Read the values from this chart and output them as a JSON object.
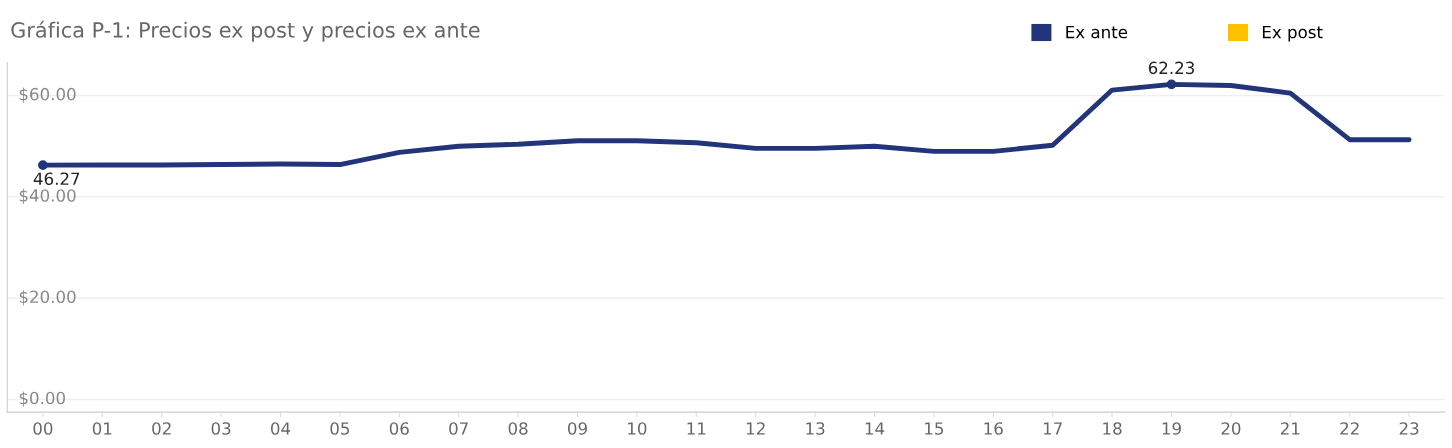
{
  "chart_data": {
    "type": "line",
    "title": "Gráfica P-1: Precios ex post y precios ex ante",
    "categories": [
      "00",
      "01",
      "02",
      "03",
      "04",
      "05",
      "06",
      "07",
      "08",
      "09",
      "10",
      "11",
      "12",
      "13",
      "14",
      "15",
      "16",
      "17",
      "18",
      "19",
      "20",
      "21",
      "22",
      "23"
    ],
    "series": [
      {
        "name": "Ex ante",
        "color": "#22347a",
        "values": [
          46.27,
          46.3,
          46.3,
          46.4,
          46.5,
          46.4,
          48.8,
          50.0,
          50.4,
          51.1,
          51.1,
          50.7,
          49.6,
          49.6,
          50.0,
          49.0,
          49.0,
          50.2,
          61.1,
          62.23,
          62.0,
          60.5,
          51.3,
          51.3
        ],
        "value_labels": [
          "46.27",
          null,
          null,
          null,
          null,
          null,
          null,
          null,
          null,
          null,
          null,
          null,
          null,
          null,
          null,
          null,
          null,
          null,
          null,
          "62.23",
          null,
          null,
          null,
          null
        ]
      },
      {
        "name": "Ex post",
        "color": "#ffc000",
        "values": [
          null,
          null,
          null,
          null,
          null,
          null,
          null,
          null,
          null,
          null,
          null,
          null,
          null,
          null,
          null,
          null,
          null,
          null,
          null,
          null,
          null,
          null,
          null,
          null
        ]
      }
    ],
    "ylim": [
      -2.5,
      66.5
    ],
    "yticks": [
      {
        "value": 0,
        "label": "$0.00"
      },
      {
        "value": 20,
        "label": "$20.00"
      },
      {
        "value": 40,
        "label": "$40.00"
      },
      {
        "value": 60,
        "label": "$60.00"
      }
    ],
    "grid": "y",
    "legend": "top right"
  }
}
